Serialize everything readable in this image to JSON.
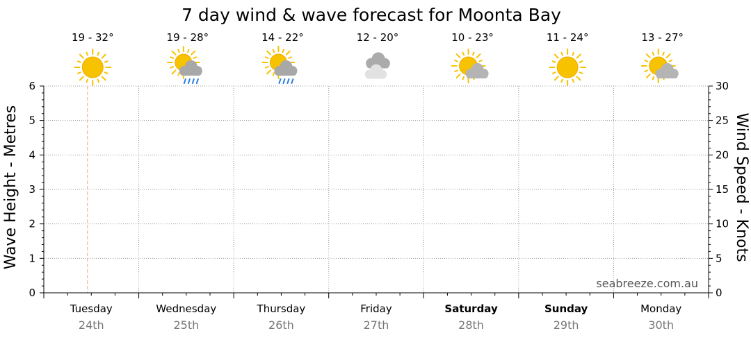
{
  "chart_data": {
    "type": "line",
    "title": "7 day wind & wave forecast for Moonta Bay",
    "ylabel_left": "Wave Height - Metres",
    "ylabel_right": "Wind Speed - Knots",
    "ylim_left": [
      0,
      6
    ],
    "ylim_right": [
      0,
      30
    ],
    "yticks_left": [
      "0",
      "1",
      "2",
      "3",
      "4",
      "5",
      "6"
    ],
    "yticks_right": [
      "0",
      "5",
      "10",
      "15",
      "20",
      "25",
      "30"
    ],
    "grid": true,
    "credit": "seabreeze.com.au",
    "current_time_fraction": 0.46,
    "days": [
      {
        "name": "Tuesday",
        "date": "24th",
        "temp": "19 - 32°",
        "icon": "sunny-icon",
        "bold": false
      },
      {
        "name": "Wednesday",
        "date": "25th",
        "temp": "19 - 28°",
        "icon": "sun-cloud-rain-icon",
        "bold": false
      },
      {
        "name": "Thursday",
        "date": "26th",
        "temp": "14 - 22°",
        "icon": "sun-cloud-rain-icon",
        "bold": false
      },
      {
        "name": "Friday",
        "date": "27th",
        "temp": "12 - 20°",
        "icon": "cloudy-icon",
        "bold": false
      },
      {
        "name": "Saturday",
        "date": "28th",
        "temp": "10 - 23°",
        "icon": "partly-cloudy-icon",
        "bold": true
      },
      {
        "name": "Sunday",
        "date": "29th",
        "temp": "11 - 24°",
        "icon": "sunny-icon",
        "bold": true
      },
      {
        "name": "Monday",
        "date": "30th",
        "temp": "13 - 27°",
        "icon": "partly-cloudy-icon",
        "bold": false
      }
    ],
    "series": []
  }
}
